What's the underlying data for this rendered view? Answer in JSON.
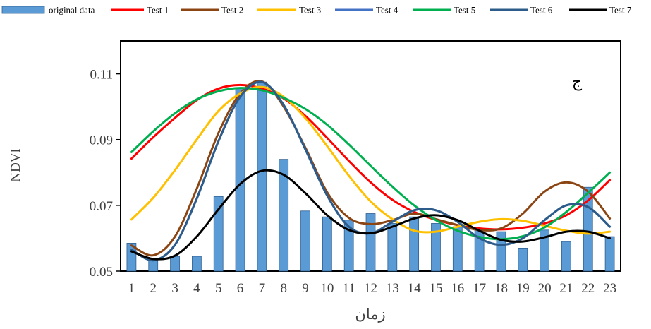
{
  "chart_data": {
    "type": "line",
    "xlabel": "زمان",
    "ylabel": "NDVI",
    "annotation": "ج",
    "x": [
      1,
      2,
      3,
      4,
      5,
      6,
      7,
      8,
      9,
      10,
      11,
      12,
      13,
      14,
      15,
      16,
      17,
      18,
      19,
      20,
      21,
      22,
      23
    ],
    "ylim": [
      0.05,
      0.12
    ],
    "yticks": [
      0.05,
      0.07,
      0.09,
      0.11
    ],
    "ytick_labels": [
      "0.05",
      "0.07",
      "0.09",
      "0.11"
    ],
    "grid": false,
    "legend_position": "top",
    "bar_series": {
      "name": "original data",
      "color": "#5b9bd5",
      "values": [
        0.0585,
        0.0535,
        0.0545,
        0.0545,
        0.0727,
        0.1055,
        0.1075,
        0.084,
        0.0683,
        0.0665,
        0.0655,
        0.0675,
        0.0645,
        0.0665,
        0.0645,
        0.0635,
        0.0625,
        0.062,
        0.057,
        0.0625,
        0.059,
        0.0755,
        0.0605
      ]
    },
    "series": [
      {
        "name": "Test 1",
        "color": "#ff0000",
        "values": [
          0.0842,
          0.0907,
          0.0966,
          0.102,
          0.1055,
          0.1066,
          0.1055,
          0.1025,
          0.0972,
          0.0905,
          0.0835,
          0.077,
          0.0717,
          0.068,
          0.0656,
          0.064,
          0.063,
          0.0627,
          0.0632,
          0.0645,
          0.067,
          0.0715,
          0.0777
        ]
      },
      {
        "name": "Test 2",
        "color": "#8b4513",
        "values": [
          0.0578,
          0.0548,
          0.0605,
          0.075,
          0.092,
          0.104,
          0.1077,
          0.1,
          0.0875,
          0.074,
          0.0662,
          0.0643,
          0.0655,
          0.0675,
          0.0658,
          0.064,
          0.0625,
          0.063,
          0.0675,
          0.0742,
          0.077,
          0.0742,
          0.066
        ]
      },
      {
        "name": "Test 3",
        "color": "#ffc000",
        "values": [
          0.0657,
          0.0723,
          0.0807,
          0.09,
          0.0987,
          0.104,
          0.106,
          0.103,
          0.0965,
          0.088,
          0.079,
          0.0712,
          0.0658,
          0.0623,
          0.062,
          0.0635,
          0.065,
          0.0658,
          0.0653,
          0.0638,
          0.0623,
          0.0614,
          0.062
        ]
      },
      {
        "name": "Test 4",
        "color": "#4472c4",
        "values": [
          0.0565,
          0.0533,
          0.058,
          0.072,
          0.0895,
          0.103,
          0.1075,
          0.1005,
          0.087,
          0.073,
          0.0635,
          0.0615,
          0.065,
          0.0685,
          0.0685,
          0.065,
          0.06,
          0.058,
          0.06,
          0.0655,
          0.07,
          0.0695,
          0.0635
        ]
      },
      {
        "name": "Test 5",
        "color": "#00b050",
        "values": [
          0.0862,
          0.0925,
          0.098,
          0.1022,
          0.1047,
          0.1057,
          0.105,
          0.1027,
          0.0993,
          0.0945,
          0.0885,
          0.082,
          0.0757,
          0.07,
          0.0655,
          0.0623,
          0.0604,
          0.0597,
          0.0606,
          0.0633,
          0.068,
          0.0738,
          0.08
        ]
      },
      {
        "name": "Test 6",
        "color": "#2e5c8a",
        "values": [
          0.0565,
          0.0533,
          0.058,
          0.072,
          0.0895,
          0.103,
          0.1075,
          0.1005,
          0.087,
          0.073,
          0.0635,
          0.0615,
          0.065,
          0.0685,
          0.0685,
          0.065,
          0.06,
          0.058,
          0.06,
          0.0655,
          0.07,
          0.0695,
          0.0635
        ]
      },
      {
        "name": "Test 7",
        "color": "#000000",
        "values": [
          0.056,
          0.0537,
          0.0547,
          0.0605,
          0.0688,
          0.0765,
          0.0805,
          0.0793,
          0.0737,
          0.067,
          0.0625,
          0.0615,
          0.0635,
          0.066,
          0.067,
          0.0655,
          0.0623,
          0.0595,
          0.059,
          0.0603,
          0.062,
          0.062,
          0.06
        ]
      }
    ]
  }
}
